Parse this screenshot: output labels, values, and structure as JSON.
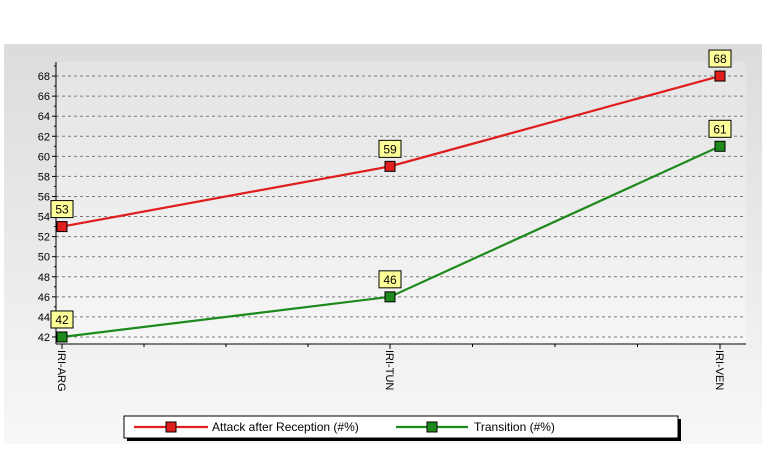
{
  "chart_data": {
    "type": "line",
    "categories": [
      "IRI-ARG",
      "IRI-TUN",
      "IRI-VEN"
    ],
    "series": [
      {
        "name": "Attack after Reception (#%)",
        "values": [
          53,
          59,
          68
        ],
        "color": "#e01e1e"
      },
      {
        "name": "Transition (#%)",
        "values": [
          42,
          46,
          61
        ],
        "color": "#1e8a1e"
      }
    ],
    "yticks": [
      42,
      44,
      46,
      48,
      50,
      52,
      54,
      56,
      58,
      60,
      62,
      64,
      66,
      68
    ],
    "ylim": [
      41.3,
      69.4
    ],
    "grid": true,
    "legend_position": "bottom",
    "data_label_bg": "#ffff99"
  }
}
